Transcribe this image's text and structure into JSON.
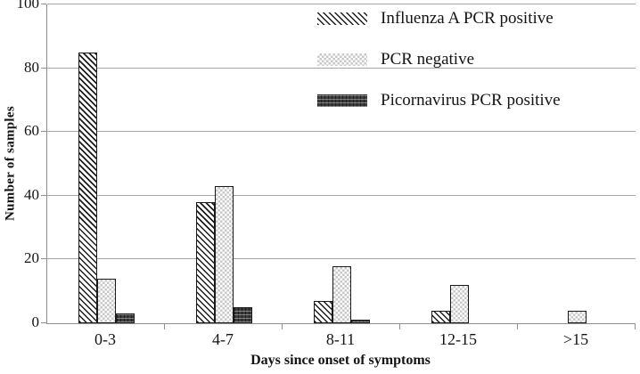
{
  "figure": {
    "background": "#ffffff"
  },
  "chart_data": {
    "type": "bar",
    "title": "",
    "xlabel": "Days since onset of symptoms",
    "ylabel": "Number of samples",
    "categories": [
      "0-3",
      "4-7",
      "8-11",
      "12-15",
      ">15"
    ],
    "series": [
      {
        "name": "Influenza A PCR positive",
        "pattern": "diagonal-hatch",
        "values": [
          85,
          38,
          7,
          4,
          0
        ]
      },
      {
        "name": "PCR negative",
        "pattern": "light-checker",
        "values": [
          14,
          43,
          18,
          12,
          4
        ]
      },
      {
        "name": "Picornavirus PCR positive",
        "pattern": "dark-weave",
        "values": [
          3,
          5,
          1,
          0,
          0
        ]
      }
    ],
    "ylim": [
      0,
      100
    ],
    "yticks": [
      0,
      20,
      40,
      60,
      80,
      100
    ],
    "grid": "horizontal",
    "legend_position": "top-right",
    "colors": {
      "axis": "#8f8f8f",
      "gridline": "#a6a6a6",
      "bar_outline": "#1a1a1a",
      "hatch_dark": "#1c1c1c",
      "checker_light": "#c9c9c9",
      "weave_dark": "#3d3d3d",
      "text": "#141414"
    }
  }
}
